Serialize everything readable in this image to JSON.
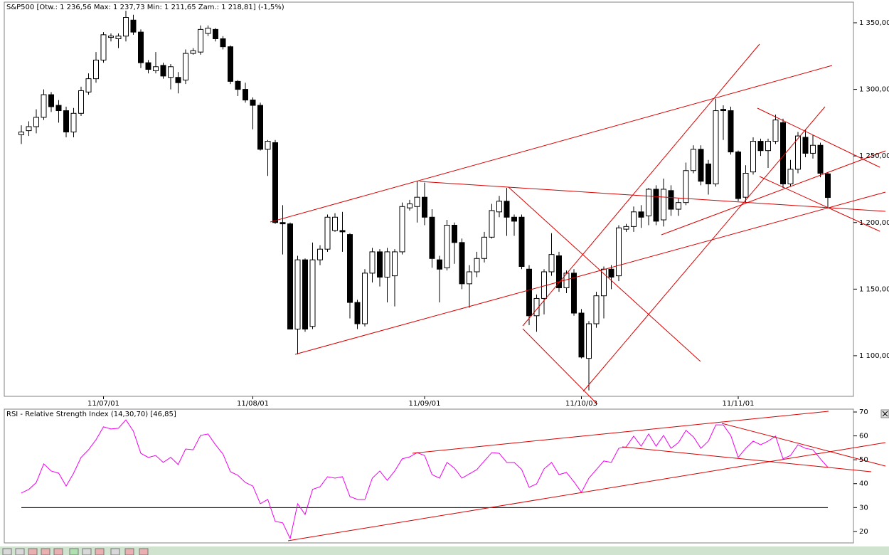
{
  "chart_data": [
    {
      "type": "candlestick",
      "title": "S&P500 [Otw.: 1 236,56  Max: 1 237,73  Min: 1 211,65  Zam.: 1 218,81] (-1,5%)",
      "categories": [
        null,
        null,
        null,
        null,
        null,
        null,
        null,
        null,
        null,
        null,
        null,
        "11/07/01",
        null,
        null,
        null,
        null,
        null,
        null,
        null,
        null,
        null,
        null,
        null,
        null,
        null,
        null,
        null,
        null,
        null,
        null,
        null,
        "11/08/01",
        null,
        null,
        null,
        null,
        null,
        null,
        null,
        null,
        null,
        null,
        null,
        null,
        null,
        null,
        null,
        null,
        null,
        null,
        null,
        null,
        null,
        null,
        "11/09/01",
        null,
        null,
        null,
        null,
        null,
        null,
        null,
        null,
        null,
        null,
        null,
        null,
        null,
        null,
        null,
        null,
        null,
        null,
        null,
        null,
        "11/10/03",
        null,
        null,
        null,
        null,
        null,
        null,
        null,
        null,
        null,
        null,
        null,
        null,
        null,
        null,
        null,
        null,
        null,
        null,
        null,
        null,
        "11/11/01",
        null,
        null,
        null,
        null,
        null,
        null,
        null,
        null,
        null,
        null,
        null,
        null
      ],
      "open": [
        1266,
        1269,
        1272,
        1279,
        1296,
        1288,
        1284,
        1268,
        1282,
        1298,
        1308,
        1322,
        1339,
        1338,
        1340,
        1352,
        1343,
        1320,
        1314,
        1318,
        1309,
        1309,
        1307,
        1327,
        1328,
        1342,
        1345,
        1338,
        1332,
        1306,
        1300,
        1292,
        1288,
        1255,
        1260,
        1200,
        1199,
        1120,
        1172,
        1122,
        1172,
        1180,
        1194,
        1194,
        1191,
        1140,
        1124,
        1162,
        1178,
        1159,
        1160,
        1178,
        1211,
        1212,
        1219,
        1204,
        1172,
        1166,
        1198,
        1185,
        1154,
        1163,
        1173,
        1189,
        1208,
        1216,
        1204,
        1204,
        1165,
        1130,
        1143,
        1163,
        1175,
        1151,
        1162,
        1132,
        1098,
        1124,
        1145,
        1165,
        1160,
        1195,
        1197,
        1208,
        1205,
        1225,
        1202,
        1224,
        1210,
        1215,
        1239,
        1255,
        1244,
        1229,
        1285,
        1284,
        1253,
        1219,
        1238,
        1261,
        1254,
        1261,
        1275,
        1229,
        1240,
        1264,
        1252,
        1258,
        1236.56
      ],
      "high": [
        1273,
        1276,
        1285,
        1300,
        1298,
        1292,
        1287,
        1286,
        1302,
        1312,
        1328,
        1343,
        1342,
        1342,
        1359,
        1356,
        1345,
        1322,
        1328,
        1320,
        1319,
        1313,
        1330,
        1331,
        1348,
        1348,
        1346,
        1340,
        1333,
        1307,
        1305,
        1294,
        1290,
        1262,
        1262,
        1213,
        1200,
        1175,
        1173,
        1185,
        1183,
        1206,
        1207,
        1208,
        1192,
        1142,
        1165,
        1181,
        1180,
        1181,
        1180,
        1215,
        1217,
        1231,
        1230,
        1210,
        1175,
        1202,
        1200,
        1188,
        1168,
        1178,
        1193,
        1214,
        1220,
        1226,
        1206,
        1206,
        1168,
        1146,
        1165,
        1192,
        1178,
        1164,
        1165,
        1135,
        1126,
        1148,
        1167,
        1168,
        1198,
        1199,
        1212,
        1213,
        1226,
        1228,
        1233,
        1228,
        1218,
        1245,
        1258,
        1258,
        1247,
        1293,
        1288,
        1287,
        1254,
        1243,
        1264,
        1263,
        1263,
        1281,
        1278,
        1247,
        1268,
        1270,
        1266,
        1260,
        1237.73
      ],
      "low": [
        1259,
        1265,
        1267,
        1277,
        1283,
        1275,
        1264,
        1264,
        1280,
        1296,
        1305,
        1320,
        1336,
        1331,
        1336,
        1341,
        1316,
        1312,
        1312,
        1308,
        1300,
        1297,
        1304,
        1326,
        1326,
        1340,
        1336,
        1330,
        1304,
        1295,
        1290,
        1270,
        1254,
        1235,
        1199,
        1176,
        1120,
        1101,
        1118,
        1120,
        1168,
        1178,
        1193,
        1178,
        1128,
        1120,
        1122,
        1155,
        1152,
        1140,
        1137,
        1176,
        1209,
        1200,
        1198,
        1166,
        1140,
        1164,
        1169,
        1150,
        1136,
        1159,
        1170,
        1188,
        1204,
        1190,
        1190,
        1165,
        1123,
        1118,
        1131,
        1160,
        1148,
        1147,
        1130,
        1098,
        1074,
        1121,
        1128,
        1150,
        1156,
        1193,
        1193,
        1196,
        1198,
        1198,
        1197,
        1205,
        1205,
        1213,
        1237,
        1228,
        1221,
        1227,
        1262,
        1251,
        1216,
        1215,
        1236,
        1250,
        1241,
        1259,
        1226,
        1227,
        1237,
        1249,
        1248,
        1234,
        1211.65
      ],
      "close": [
        1268,
        1272,
        1279,
        1296,
        1287,
        1284,
        1268,
        1282,
        1299,
        1308,
        1322,
        1341,
        1340,
        1340,
        1354,
        1343,
        1320,
        1315,
        1317,
        1310,
        1317,
        1305,
        1327,
        1329,
        1345,
        1346,
        1338,
        1332,
        1306,
        1300,
        1292,
        1288,
        1255,
        1261,
        1200,
        1199,
        1120,
        1172,
        1120,
        1172,
        1180,
        1204,
        1204,
        1193,
        1140,
        1124,
        1162,
        1178,
        1159,
        1178,
        1178,
        1212,
        1214,
        1219,
        1204,
        1173,
        1165,
        1198,
        1185,
        1154,
        1163,
        1173,
        1189,
        1209,
        1216,
        1204,
        1201,
        1167,
        1130,
        1143,
        1163,
        1176,
        1151,
        1162,
        1132,
        1099,
        1124,
        1145,
        1165,
        1159,
        1196,
        1197,
        1208,
        1204,
        1225,
        1201,
        1225,
        1210,
        1215,
        1239,
        1255,
        1231,
        1229,
        1284,
        1284,
        1253,
        1218,
        1237,
        1261,
        1254,
        1261,
        1277,
        1229,
        1240,
        1265,
        1252,
        1258,
        1237,
        1218.81
      ],
      "up_color": "#ffffff",
      "down_color": "#000000",
      "ylim": [
        1069.5,
        1365.5
      ],
      "yticks": [
        {
          "value": 1100,
          "label": "1 100,00"
        },
        {
          "value": 1150,
          "label": "1 150,00"
        },
        {
          "value": 1200,
          "label": "1 200,00"
        },
        {
          "value": 1250,
          "label": "1 250,00"
        },
        {
          "value": 1300,
          "label": "1 300,00"
        },
        {
          "value": 1350,
          "label": "1 350,00"
        }
      ]
    },
    {
      "type": "line",
      "title": "RSI - Relative Strength Index (14,30,70) [46,85]",
      "color": "#ee00ee",
      "values": [
        36.1,
        37.6,
        40.5,
        48.3,
        45.3,
        44.4,
        39,
        44.4,
        51,
        54.2,
        58.4,
        63.8,
        62.9,
        63.2,
        66.7,
        62,
        52.7,
        51,
        51.8,
        48.9,
        51,
        48,
        54.5,
        54.2,
        60.2,
        60.8,
        56.3,
        52.4,
        45,
        43.5,
        40.5,
        39,
        31.6,
        33.4,
        24.2,
        23.6,
        17,
        31.6,
        27.1,
        37.6,
        38.7,
        42.9,
        42.3,
        42.9,
        34.6,
        33.4,
        33.4,
        42.3,
        45.3,
        41.4,
        45.3,
        50.4,
        51.2,
        53,
        51.8,
        43.8,
        42.3,
        48.9,
        46.5,
        42.3,
        44.1,
        45.9,
        49.5,
        53,
        52.7,
        48.9,
        48.9,
        45.9,
        38.5,
        39.9,
        46.2,
        48.9,
        43.8,
        44.7,
        40.8,
        36.4,
        42.3,
        45.9,
        49.5,
        48.9,
        54.8,
        55.4,
        59.9,
        55.7,
        60.8,
        55.7,
        60.2,
        54.8,
        57.2,
        62.3,
        59.6,
        54.8,
        57.8,
        64.6,
        64.6,
        60.2,
        51,
        54.8,
        57.8,
        56.3,
        57.8,
        59.9,
        50.4,
        51.8,
        56.3,
        54.8,
        54.2,
        50.4,
        46.85
      ],
      "hline": 30,
      "ylim": [
        15.2,
        71.2
      ],
      "yticks": [
        20,
        30,
        40,
        50,
        60,
        70
      ]
    }
  ]
}
